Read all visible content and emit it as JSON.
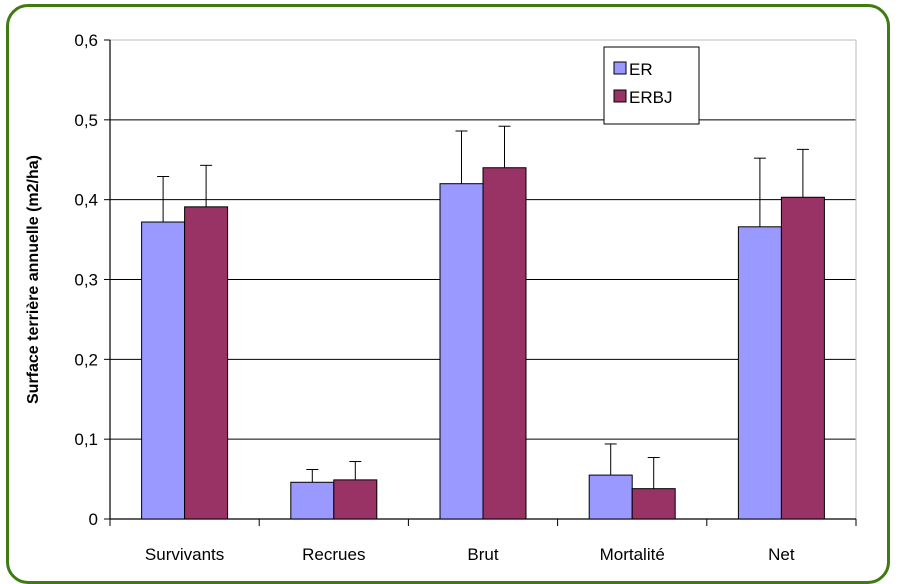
{
  "chart_data": {
    "type": "bar",
    "title": "",
    "xlabel": "",
    "ylabel": "Surface terrière annuelle (m2/ha)",
    "categories": [
      "Survivants",
      "Recrues",
      "Brut",
      "Mortalité",
      "Net"
    ],
    "series": [
      {
        "name": "ER",
        "color": "#9999ff",
        "values": [
          0.372,
          0.046,
          0.42,
          0.055,
          0.366
        ],
        "error_upper": [
          0.057,
          0.016,
          0.066,
          0.039,
          0.086
        ]
      },
      {
        "name": "ERBJ",
        "color": "#993366",
        "values": [
          0.391,
          0.049,
          0.44,
          0.038,
          0.403
        ],
        "error_upper": [
          0.052,
          0.023,
          0.052,
          0.039,
          0.06
        ]
      }
    ],
    "ylim": [
      0,
      0.6
    ],
    "yticks": [
      "0",
      "0,1",
      "0,2",
      "0,3",
      "0,4",
      "0,5",
      "0,6"
    ],
    "grid": true,
    "legend": "top-right-inside",
    "border_color": "#3f7a12"
  }
}
